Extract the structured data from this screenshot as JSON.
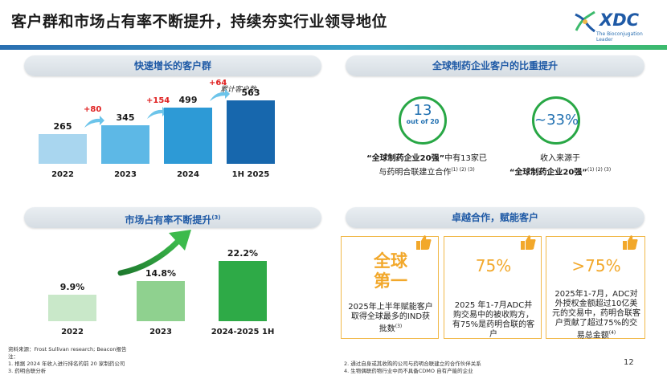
{
  "header": {
    "title": "客户群和市场占有率不断提升，持续夯实行业领导地位",
    "logo_text": "XDC",
    "logo_sub": "The Bioconjugation Leader",
    "brand_blue": "#1f5aa6",
    "brand_green": "#3cba6c"
  },
  "panels": {
    "customers": {
      "heading": "快速增长的客户群",
      "note": "累计客户数"
    },
    "share": {
      "heading": "市场占有率不断提升",
      "heading_sup": "(3)"
    },
    "pharma": {
      "heading": "全球制药企业客户的比重提升",
      "circle1_big": "13",
      "circle1_small": "out of 20",
      "circle2_big": "~33%",
      "caption1_line1_bold": "“全球制药企业20强”",
      "caption1_line1_rest": "中有13家已",
      "caption1_line2": "与药明合联建立合作",
      "caption1_sup": "(1) (2)  (3)",
      "caption2_line1": "收入来源于",
      "caption2_line2_bold": "“全球制药企业20强”",
      "caption2_sup": "(1) (2)  (3)"
    },
    "partner": {
      "heading": "卓越合作，赋能客户",
      "card1_big_line1": "全球",
      "card1_big_line2": "第一",
      "card1_text": "2025年上半年赋能客户取得全球最多的IND获批数",
      "card1_sup": "(3)",
      "card2_big": "75%",
      "card2_text": "2025 年1-7月ADC并购交易中的被收购方，有75%是药明合联的客户",
      "card3_big": ">75%",
      "card3_text": "2025年1-7月，ADC对外授权金额超过10亿美元的交易中，药明合联客户贡献了超过75%的交易总金额",
      "card3_sup": "(4)"
    }
  },
  "chart_data": [
    {
      "type": "bar",
      "title": "快速增长的客户群",
      "ylabel": "累计客户数",
      "categories": [
        "2022",
        "2023",
        "2024",
        "1H 2025"
      ],
      "values": [
        265,
        345,
        499,
        563
      ],
      "value_labels": [
        "265",
        "345",
        "499",
        "563"
      ],
      "deltas": [
        "+80",
        "+154",
        "+64"
      ],
      "colors": [
        "#a9d6ef",
        "#5db8e6",
        "#2d9ad6",
        "#1767ad"
      ],
      "ylim": [
        0,
        600
      ]
    },
    {
      "type": "bar",
      "title": "市场占有率不断提升",
      "categories": [
        "2022",
        "2023",
        "2024-2025 1H"
      ],
      "values": [
        9.9,
        14.8,
        22.2
      ],
      "value_labels": [
        "9.9%",
        "14.8%",
        "22.2%"
      ],
      "colors": [
        "#c9e8c9",
        "#8fd18f",
        "#2eaa47"
      ],
      "ylim": [
        0,
        25
      ]
    }
  ],
  "footer": {
    "source": "资料来源：Frost Sullivan research; Beacon报告",
    "note_label": "注：",
    "note1": "1. 根据 2024 年收入进行排名的前 20 家制药公司",
    "note3": "3. 药明合联分析",
    "note2": "2. 通过自身或其收购的公司与药明合联建立的合作伙伴关系",
    "note4": "4. 生物偶联药物行业中尚不具备CDMO 自有产能的企业",
    "page": "12"
  }
}
